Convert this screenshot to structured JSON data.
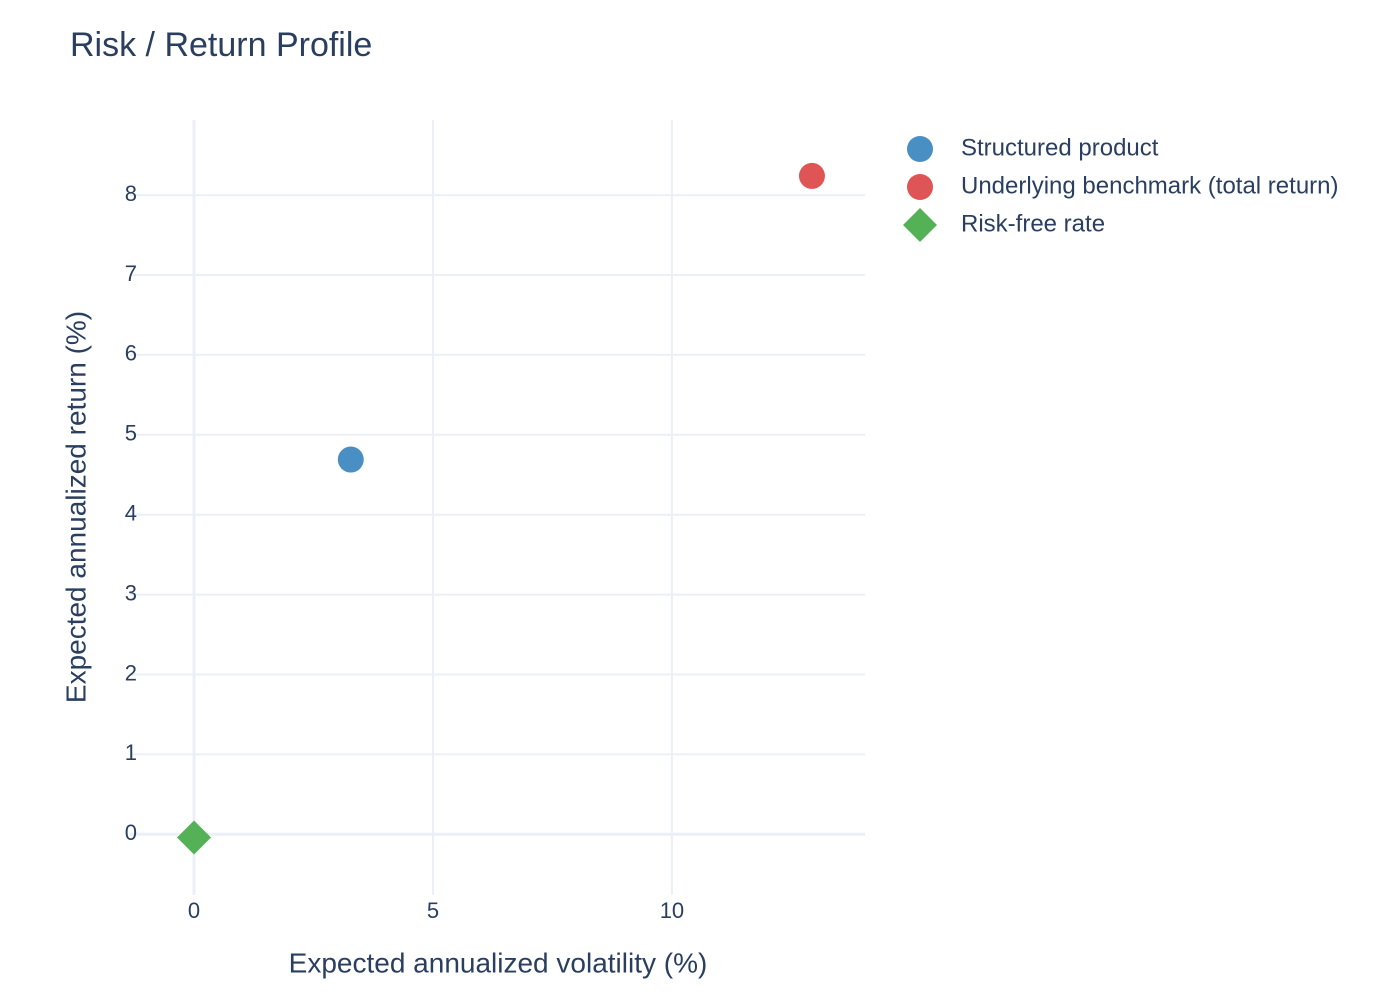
{
  "chart_data": {
    "type": "scatter",
    "title": "Risk / Return Profile",
    "x_label": "Expected annualized volatility (%)",
    "y_label": "Expected annualized return (%)",
    "xlim": [
      -1.34,
      14.04
    ],
    "xticks": [
      0,
      5,
      10
    ],
    "ylim": [
      -0.76,
      8.94
    ],
    "yticks": [
      0,
      1,
      2,
      3,
      4,
      5,
      6,
      7,
      8
    ],
    "grid": true,
    "legend": "right",
    "series": [
      {
        "name": "Structured product",
        "color": "#4a8fc3",
        "symbol": "circle",
        "x": [
          3.28
        ],
        "y": [
          4.69
        ]
      },
      {
        "name": "Underlying benchmark (total return)",
        "color": "#df5454",
        "symbol": "circle",
        "x": [
          12.93
        ],
        "y": [
          8.24
        ]
      },
      {
        "name": "Risk-free rate",
        "color": "#55b155",
        "symbol": "diamond",
        "x": [
          0
        ],
        "y": [
          -0.04
        ]
      }
    ]
  }
}
